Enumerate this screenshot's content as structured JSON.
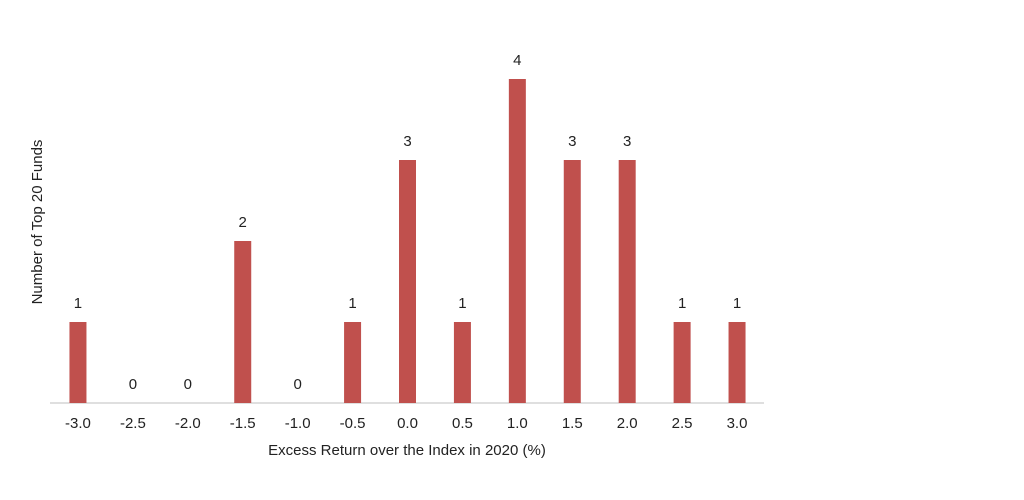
{
  "chart_data": {
    "type": "bar",
    "x_label": "Excess Return over the Index in 2020 (%)",
    "y_label": "Number of Top 20 Funds",
    "categories": [
      "-3.0",
      "-2.5",
      "-2.0",
      "-1.5",
      "-1.0",
      "-0.5",
      "0.0",
      "0.5",
      "1.0",
      "1.5",
      "2.0",
      "2.5",
      "3.0"
    ],
    "values": [
      1,
      0,
      0,
      2,
      0,
      1,
      3,
      1,
      4,
      3,
      3,
      1,
      1
    ],
    "color": "#c0504d",
    "ylim": [
      0,
      4
    ]
  }
}
